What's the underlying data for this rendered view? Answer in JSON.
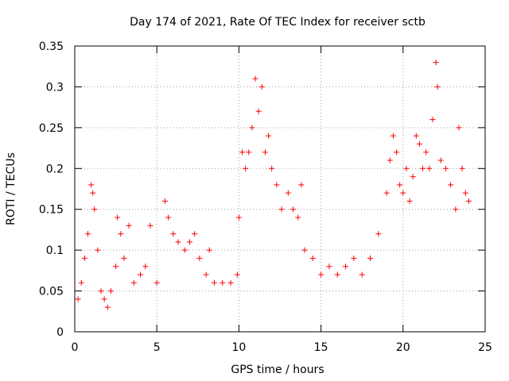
{
  "chart_data": {
    "type": "scatter",
    "title": "Day 174 of 2021, Rate Of TEC Index for receiver sctb",
    "xlabel": "GPS time / hours",
    "ylabel": "ROTI / TECUs",
    "xlim": [
      0,
      25
    ],
    "ylim": [
      0,
      0.35
    ],
    "xticks": [
      0,
      5,
      10,
      15,
      20,
      25
    ],
    "yticks": [
      0,
      0.05,
      0.1,
      0.15,
      0.2,
      0.25,
      0.3,
      0.35
    ],
    "xtick_labels": [
      "0",
      "5",
      "10",
      "15",
      "20",
      "25"
    ],
    "ytick_labels": [
      "0",
      "0.05",
      "0.1",
      "0.15",
      "0.2",
      "0.25",
      "0.3",
      "0.35"
    ],
    "grid": true,
    "marker": "+",
    "marker_color": "#ff0000",
    "series": [
      {
        "name": "ROTI",
        "points": [
          [
            0.2,
            0.04
          ],
          [
            0.4,
            0.06
          ],
          [
            0.6,
            0.09
          ],
          [
            0.8,
            0.12
          ],
          [
            1.0,
            0.18
          ],
          [
            1.1,
            0.17
          ],
          [
            1.2,
            0.15
          ],
          [
            1.4,
            0.1
          ],
          [
            1.6,
            0.05
          ],
          [
            1.8,
            0.04
          ],
          [
            2.0,
            0.03
          ],
          [
            2.2,
            0.05
          ],
          [
            2.5,
            0.08
          ],
          [
            2.6,
            0.14
          ],
          [
            2.8,
            0.12
          ],
          [
            3.0,
            0.09
          ],
          [
            3.3,
            0.13
          ],
          [
            3.6,
            0.06
          ],
          [
            4.0,
            0.07
          ],
          [
            4.3,
            0.08
          ],
          [
            4.6,
            0.13
          ],
          [
            5.0,
            0.06
          ],
          [
            5.5,
            0.16
          ],
          [
            5.7,
            0.14
          ],
          [
            6.0,
            0.12
          ],
          [
            6.3,
            0.11
          ],
          [
            6.7,
            0.1
          ],
          [
            7.0,
            0.11
          ],
          [
            7.3,
            0.12
          ],
          [
            7.6,
            0.09
          ],
          [
            8.0,
            0.07
          ],
          [
            8.2,
            0.1
          ],
          [
            8.5,
            0.06
          ],
          [
            9.0,
            0.06
          ],
          [
            9.5,
            0.06
          ],
          [
            9.9,
            0.07
          ],
          [
            10.0,
            0.14
          ],
          [
            10.2,
            0.22
          ],
          [
            10.4,
            0.2
          ],
          [
            10.6,
            0.22
          ],
          [
            10.8,
            0.25
          ],
          [
            11.0,
            0.31
          ],
          [
            11.2,
            0.27
          ],
          [
            11.4,
            0.3
          ],
          [
            11.6,
            0.22
          ],
          [
            11.8,
            0.24
          ],
          [
            12.0,
            0.2
          ],
          [
            12.3,
            0.18
          ],
          [
            12.6,
            0.15
          ],
          [
            13.0,
            0.17
          ],
          [
            13.3,
            0.15
          ],
          [
            13.6,
            0.14
          ],
          [
            13.8,
            0.18
          ],
          [
            14.0,
            0.1
          ],
          [
            14.5,
            0.09
          ],
          [
            15.0,
            0.07
          ],
          [
            15.5,
            0.08
          ],
          [
            16.0,
            0.07
          ],
          [
            16.5,
            0.08
          ],
          [
            17.0,
            0.09
          ],
          [
            17.5,
            0.07
          ],
          [
            18.0,
            0.09
          ],
          [
            18.5,
            0.12
          ],
          [
            19.0,
            0.17
          ],
          [
            19.2,
            0.21
          ],
          [
            19.4,
            0.24
          ],
          [
            19.6,
            0.22
          ],
          [
            19.8,
            0.18
          ],
          [
            20.0,
            0.17
          ],
          [
            20.2,
            0.2
          ],
          [
            20.4,
            0.16
          ],
          [
            20.6,
            0.19
          ],
          [
            20.8,
            0.24
          ],
          [
            21.0,
            0.23
          ],
          [
            21.2,
            0.2
          ],
          [
            21.4,
            0.22
          ],
          [
            21.6,
            0.2
          ],
          [
            21.8,
            0.26
          ],
          [
            22.0,
            0.33
          ],
          [
            22.1,
            0.3
          ],
          [
            22.3,
            0.21
          ],
          [
            22.6,
            0.2
          ],
          [
            22.9,
            0.18
          ],
          [
            23.2,
            0.15
          ],
          [
            23.4,
            0.25
          ],
          [
            23.6,
            0.2
          ],
          [
            23.8,
            0.17
          ],
          [
            24.0,
            0.16
          ]
        ]
      }
    ]
  }
}
